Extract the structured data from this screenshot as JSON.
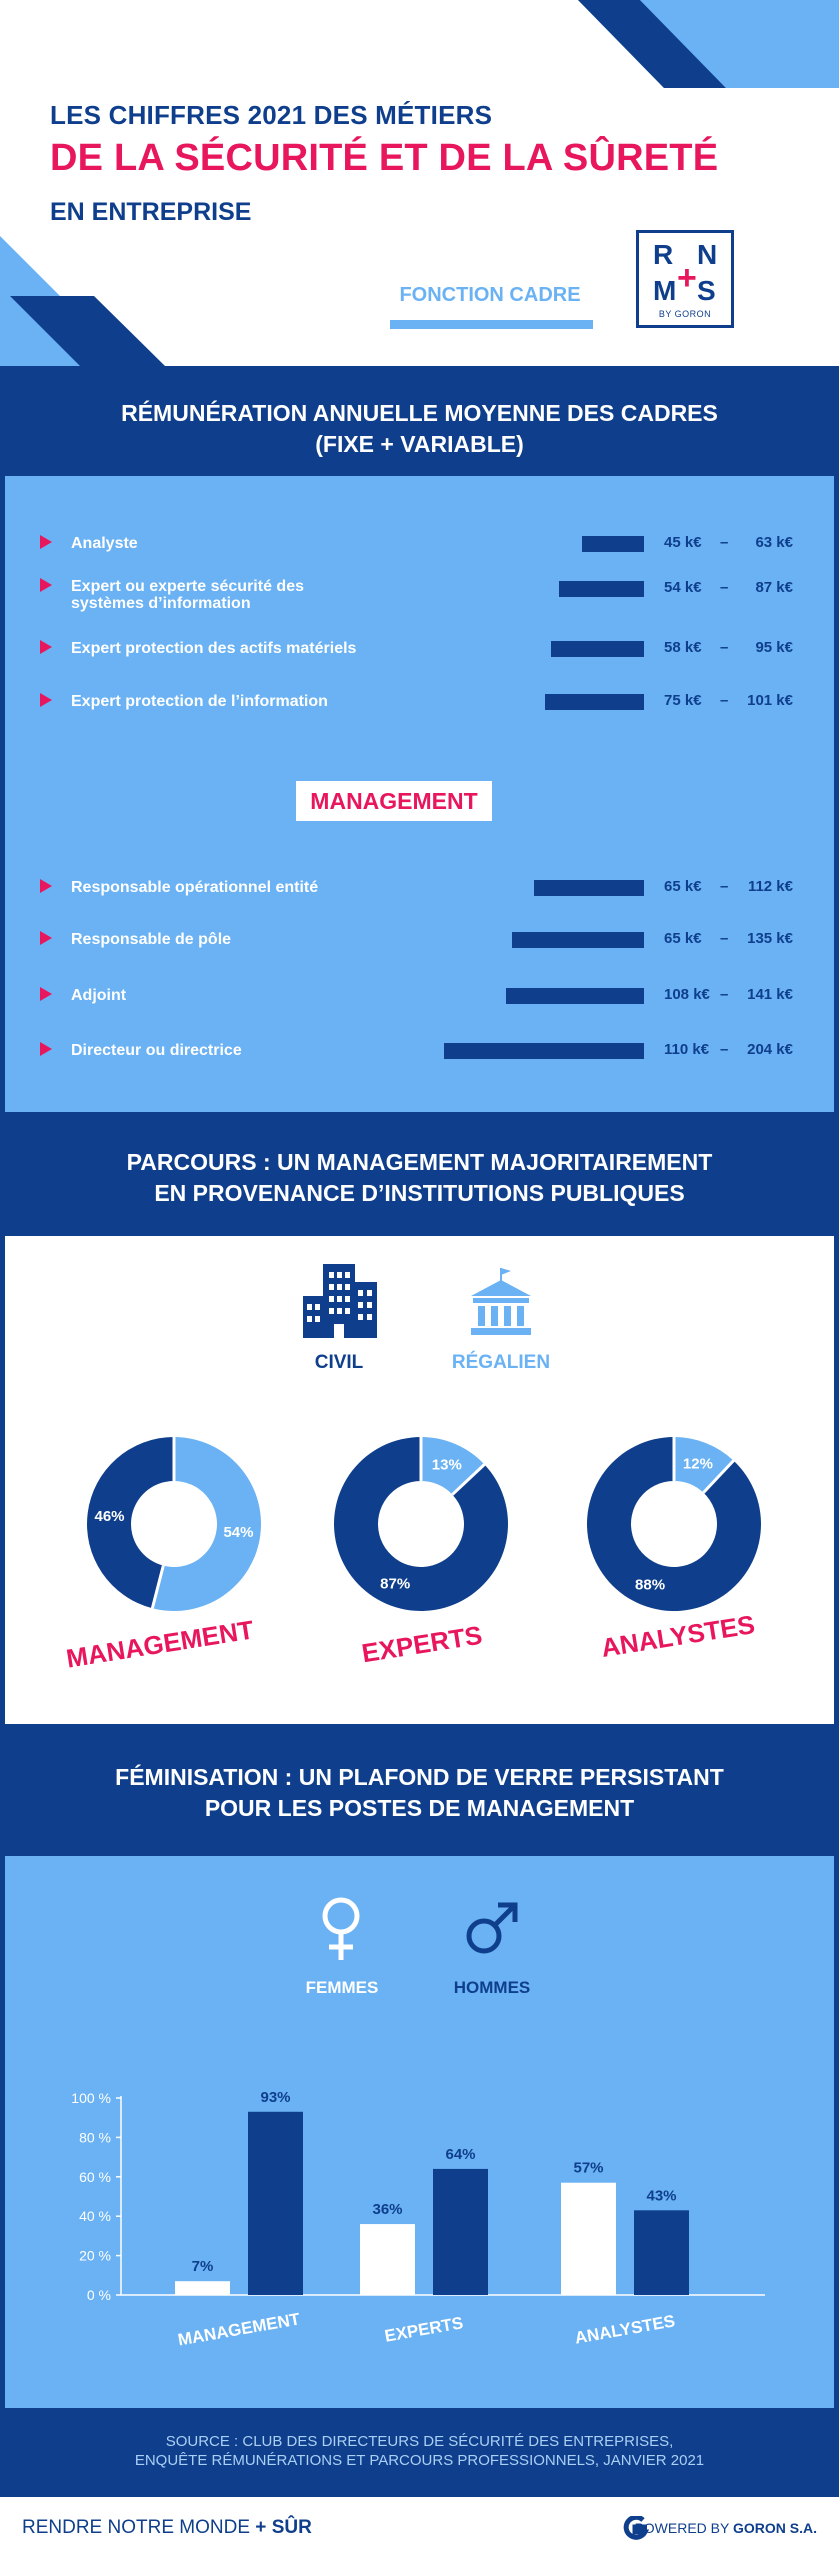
{
  "header": {
    "line1": "LES CHIFFRES 2021 DES MÉTIERS",
    "line2": "DE LA SÉCURITÉ ET DE LA SÛRETÉ",
    "line3": "EN ENTREPRISE",
    "fonction": "FONCTION CADRE",
    "logo": {
      "r": "R",
      "n": "N",
      "m": "M",
      "s": "S",
      "plus": "+",
      "sub": "BY GORON"
    }
  },
  "colors": {
    "navy": "#0f3f8c",
    "light_blue": "#6ab2f3",
    "pink": "#e8175d",
    "white": "#ffffff"
  },
  "sections": {
    "remuneration": [
      "RÉMUNÉRATION ANNUELLE  MOYENNE DES CADRES",
      "(FIXE + VARIABLE)"
    ],
    "parcours": [
      "PARCOURS : UN MANAGEMENT MAJORITAIREMENT",
      "EN PROVENANCE D’INSTITUTIONS PUBLIQUES"
    ],
    "feminisation": [
      "FÉMINISATION : UN PLAFOND DE VERRE PERSISTANT",
      "POUR LES POSTES DE MANAGEMENT"
    ]
  },
  "remuneration": {
    "dash": "–",
    "management_badge": "MANAGEMENT",
    "experts": [
      {
        "label": [
          "Analyste"
        ],
        "min": "45 k€",
        "max": "63 k€"
      },
      {
        "label": [
          "Expert ou experte sécurité des",
          "systèmes d’information"
        ],
        "min": "54 k€",
        "max": "87 k€"
      },
      {
        "label": [
          "Expert protection des actifs matériels"
        ],
        "min": "58 k€",
        "max": "95 k€"
      },
      {
        "label": [
          "Expert protection de l’information"
        ],
        "min": "75 k€",
        "max": "101 k€"
      }
    ],
    "management": [
      {
        "label": [
          "Responsable opérationnel entité"
        ],
        "min": "65 k€",
        "max": "112 k€"
      },
      {
        "label": [
          "Responsable de pôle"
        ],
        "min": "65 k€",
        "max": "135 k€"
      },
      {
        "label": [
          "Adjoint"
        ],
        "min": "108 k€",
        "max": "141 k€"
      },
      {
        "label": [
          "Directeur ou directrice"
        ],
        "min": "110 k€",
        "max": "204 k€"
      }
    ]
  },
  "chart_data": [
    {
      "type": "bar",
      "categories": [
        "Analyste",
        "Expert ou experte sécurité des systèmes d’information",
        "Expert protection des actifs matériels",
        "Expert protection de l’information",
        "Responsable opérationnel entité",
        "Responsable de pôle",
        "Adjoint",
        "Directeur ou directrice"
      ],
      "series": [
        {
          "values": [
            45,
            54,
            58,
            75,
            65,
            65,
            108,
            110
          ]
        },
        {
          "values": [
            63,
            87,
            95,
            101,
            112,
            135,
            141,
            204
          ]
        }
      ],
      "bar_values": [
        63,
        87,
        95,
        101,
        112,
        135,
        141,
        204
      ],
      "unit": "k€"
    },
    {
      "type": "pie",
      "legend": [
        "CIVIL",
        "RÉGALIEN"
      ],
      "charts": [
        {
          "name": "MANAGEMENT",
          "civil": 46,
          "regalien": 54,
          "civil_label": "46%",
          "regalien_label": "54%"
        },
        {
          "name": "EXPERTS",
          "civil": 87,
          "regalien": 13,
          "civil_label": "87%",
          "regalien_label": "13%"
        },
        {
          "name": "ANALYSTES",
          "civil": 88,
          "regalien": 12,
          "civil_label": "88%",
          "regalien_label": "12%"
        }
      ]
    },
    {
      "type": "bar",
      "categories": [
        "MANAGEMENT",
        "EXPERTS",
        "ANALYSTES"
      ],
      "series": [
        {
          "name": "FEMMES",
          "values": [
            7,
            36,
            57
          ],
          "labels": [
            "7%",
            "36%",
            "57%"
          ]
        },
        {
          "name": "HOMMES",
          "values": [
            93,
            64,
            43
          ],
          "labels": [
            "93%",
            "64%",
            "43%"
          ]
        }
      ],
      "ylim": [
        0,
        100
      ],
      "yticks": [
        "0 %",
        "20 %",
        "40 %",
        "60 %",
        "80 %",
        "100 %"
      ]
    }
  ],
  "footer": {
    "source": [
      "SOURCE : CLUB DES DIRECTEURS DE SÉCURITÉ DES ENTREPRISES,",
      "ENQUÊTE RÉMUNÉRATIONS ET PARCOURS PROFESSIONNELS, JANVIER 2021"
    ],
    "slogan_a": "RENDRE NOTRE MONDE",
    "slogan_plus": "+",
    "slogan_b": "SÛR",
    "powered_a": "POWERED BY ",
    "powered_b": "GORON S.A."
  }
}
